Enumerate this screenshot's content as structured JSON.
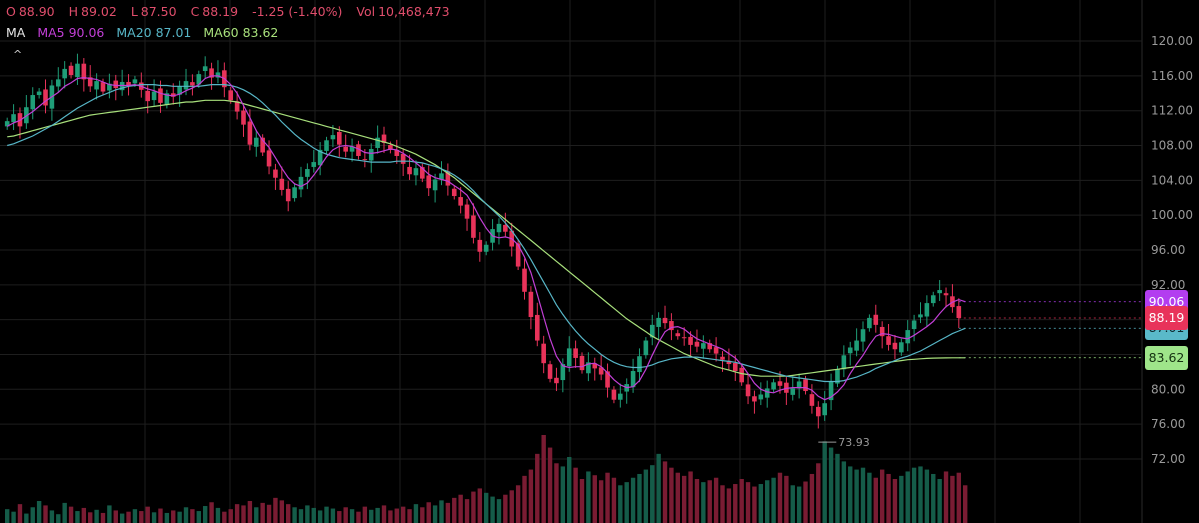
{
  "header": {
    "open_label": "O",
    "open": "88.90",
    "high_label": "H",
    "high": "89.02",
    "low_label": "L",
    "low": "87.50",
    "close_label": "C",
    "close": "88.19",
    "change": "-1.25 (-1.40%)",
    "vol_label": "Vol",
    "volume": "10,468,473",
    "text_color": "#e04e6c"
  },
  "ma_legend": {
    "title": "MA",
    "ma5": "MA5 90.06",
    "ma20": "MA20 87.01",
    "ma60": "MA60 83.62",
    "collapse_icon": "^"
  },
  "price_tags": {
    "ma5": {
      "text": "90.06",
      "value": 90.06,
      "color": "#b33df0"
    },
    "close": {
      "text": "88.19",
      "value": 88.19,
      "color": "#e8335a"
    },
    "ma20": {
      "text": "87.01",
      "value": 87.01,
      "color": "#5ab9c9"
    },
    "ma60": {
      "text": "83.62",
      "value": 83.62,
      "color": "#9fe58a"
    }
  },
  "low_marker": "73.93",
  "colors": {
    "up": "#1f9e78",
    "down": "#e8335a",
    "up_volume": "#155c49",
    "down_volume": "#7a1c33",
    "ma5": "#c23fd6",
    "ma20": "#57b6c7",
    "ma60": "#a8e07c",
    "grid": "#1e1e1e",
    "axis_text": "#9a9a9a"
  },
  "chart_data": {
    "type": "candlestick",
    "y_axis": {
      "ticks": [
        "120.00",
        "116.00",
        "112.00",
        "108.00",
        "104.00",
        "100.00",
        "96.00",
        "92.00",
        "88.00",
        "84.00",
        "80.00",
        "76.00",
        "72.00"
      ],
      "range": [
        70.5,
        121.5
      ],
      "side": "right"
    },
    "grid": true,
    "close_series": [
      110.8,
      111.6,
      110.2,
      112.4,
      113.8,
      114.2,
      112.6,
      114.9,
      115.6,
      116.8,
      116.1,
      117.4,
      115.6,
      114.8,
      115.4,
      114.2,
      115.1,
      114.6,
      115.3,
      114.9,
      115.6,
      114.4,
      113.1,
      114.2,
      112.9,
      114.0,
      113.6,
      114.8,
      115.4,
      114.9,
      116.2,
      117.1,
      115.8,
      116.4,
      114.7,
      113.2,
      111.9,
      110.4,
      108.1,
      108.9,
      107.2,
      105.6,
      104.3,
      102.9,
      101.6,
      103.2,
      104.4,
      105.3,
      106.1,
      107.5,
      108.6,
      109.2,
      108.1,
      107.3,
      107.9,
      106.8,
      106.4,
      107.6,
      108.9,
      108.3,
      107.5,
      106.8,
      105.9,
      104.7,
      105.4,
      104.2,
      103.1,
      104.1,
      104.8,
      103.4,
      102.2,
      101.1,
      99.6,
      97.4,
      95.8,
      96.6,
      98.4,
      99.0,
      98.1,
      96.4,
      94.1,
      91.2,
      88.3,
      85.6,
      83.0,
      81.2,
      80.7,
      82.9,
      84.7,
      83.6,
      82.2,
      83.1,
      82.4,
      81.7,
      80.2,
      78.8,
      79.5,
      80.6,
      82.1,
      83.8,
      85.6,
      87.4,
      88.2,
      87.6,
      86.8,
      86.1,
      85.9,
      85.1,
      84.9,
      85.3,
      84.6,
      84.1,
      83.4,
      82.9,
      82.1,
      80.8,
      79.2,
      78.6,
      79.4,
      80.1,
      80.8,
      80.4,
      79.6,
      80.1,
      80.9,
      79.8,
      78.1,
      76.9,
      78.4,
      80.9,
      82.3,
      83.9,
      84.8,
      85.6,
      86.9,
      88.2,
      87.4,
      86.1,
      85.1,
      84.6,
      85.4,
      86.8,
      87.9,
      88.6,
      89.9,
      90.8,
      91.4,
      90.8,
      89.44,
      88.19
    ],
    "ma5": [
      110.2,
      110.6,
      110.9,
      111.4,
      111.9,
      112.5,
      113.1,
      113.6,
      114.1,
      114.8,
      115.2,
      115.7,
      115.8,
      115.7,
      115.6,
      115.3,
      115.0,
      114.9,
      114.9,
      114.9,
      115.0,
      114.8,
      114.5,
      114.3,
      114.0,
      113.8,
      113.7,
      113.9,
      114.3,
      114.6,
      115.0,
      115.7,
      116.0,
      116.0,
      115.7,
      115.0,
      114.0,
      112.6,
      111.2,
      109.7,
      108.6,
      107.8,
      106.6,
      105.4,
      104.3,
      103.6,
      103.3,
      103.7,
      104.6,
      105.6,
      106.7,
      107.5,
      107.9,
      108.0,
      107.9,
      107.6,
      107.2,
      107.1,
      107.2,
      107.4,
      107.6,
      107.5,
      107.1,
      106.6,
      106.0,
      105.4,
      104.7,
      104.3,
      104.1,
      103.9,
      103.4,
      102.9,
      102.3,
      101.1,
      99.7,
      98.5,
      97.6,
      97.4,
      97.5,
      97.3,
      96.6,
      95.2,
      93.4,
      90.9,
      88.3,
      85.8,
      83.8,
      82.7,
      82.5,
      82.6,
      82.6,
      82.9,
      83.0,
      82.6,
      81.9,
      81.1,
      80.5,
      80.2,
      80.3,
      81.0,
      82.3,
      83.9,
      85.4,
      86.6,
      87.1,
      87.2,
      86.9,
      86.3,
      85.8,
      85.5,
      85.2,
      84.9,
      84.6,
      84.1,
      83.6,
      82.8,
      81.8,
      80.7,
      80.0,
      79.7,
      79.6,
      79.9,
      80.1,
      80.2,
      80.2,
      80.2,
      79.9,
      79.2,
      78.8,
      79.1,
      79.7,
      80.5,
      81.8,
      82.9,
      83.9,
      85.1,
      86.1,
      86.4,
      86.3,
      86.1,
      85.9,
      85.8,
      86.2,
      86.7,
      87.2,
      87.8,
      88.7,
      89.5,
      90.0,
      90.3,
      90.06
    ],
    "ma20": [
      108.0,
      108.2,
      108.5,
      108.8,
      109.1,
      109.5,
      109.9,
      110.3,
      110.8,
      111.3,
      111.8,
      112.3,
      112.7,
      113.1,
      113.5,
      113.8,
      114.1,
      114.4,
      114.6,
      114.8,
      114.9,
      115.0,
      115.0,
      115.0,
      114.9,
      114.9,
      114.8,
      114.8,
      114.8,
      114.8,
      114.8,
      114.9,
      115.0,
      115.0,
      115.0,
      114.9,
      114.7,
      114.4,
      114.0,
      113.5,
      112.9,
      112.2,
      111.5,
      110.7,
      110.0,
      109.3,
      108.7,
      108.2,
      107.7,
      107.3,
      107.0,
      106.8,
      106.6,
      106.5,
      106.4,
      106.3,
      106.2,
      106.1,
      106.1,
      106.1,
      106.1,
      106.2,
      106.2,
      106.2,
      106.1,
      106.0,
      105.8,
      105.6,
      105.3,
      105.0,
      104.6,
      104.1,
      103.5,
      102.8,
      102.0,
      101.3,
      100.6,
      99.9,
      99.1,
      98.2,
      97.2,
      96.1,
      94.9,
      93.6,
      92.3,
      91.0,
      89.7,
      88.6,
      87.6,
      86.7,
      85.9,
      85.2,
      84.6,
      84.0,
      83.5,
      83.1,
      82.8,
      82.6,
      82.5,
      82.5,
      82.6,
      82.8,
      83.1,
      83.3,
      83.5,
      83.6,
      83.7,
      83.7,
      83.7,
      83.6,
      83.5,
      83.4,
      83.3,
      83.2,
      83.1,
      82.9,
      82.7,
      82.5,
      82.3,
      82.1,
      81.9,
      81.7,
      81.5,
      81.4,
      81.3,
      81.2,
      81.1,
      81.0,
      80.9,
      80.9,
      80.9,
      81.0,
      81.2,
      81.4,
      81.7,
      82.0,
      82.4,
      82.7,
      83.0,
      83.3,
      83.6,
      83.8,
      84.1,
      84.4,
      84.8,
      85.2,
      85.6,
      86.0,
      86.4,
      86.7,
      87.01
    ],
    "ma60": [
      109.0,
      109.1,
      109.3,
      109.5,
      109.7,
      109.9,
      110.1,
      110.3,
      110.5,
      110.7,
      110.9,
      111.1,
      111.3,
      111.5,
      111.6,
      111.7,
      111.8,
      111.9,
      112.0,
      112.1,
      112.2,
      112.3,
      112.4,
      112.5,
      112.6,
      112.7,
      112.8,
      112.9,
      113.0,
      113.0,
      113.1,
      113.2,
      113.2,
      113.2,
      113.2,
      113.1,
      113.0,
      112.8,
      112.6,
      112.4,
      112.2,
      112.0,
      111.8,
      111.6,
      111.4,
      111.2,
      111.0,
      110.8,
      110.6,
      110.4,
      110.2,
      110.0,
      109.8,
      109.6,
      109.4,
      109.2,
      109.0,
      108.8,
      108.6,
      108.4,
      108.2,
      107.9,
      107.6,
      107.3,
      107.0,
      106.6,
      106.2,
      105.8,
      105.3,
      104.8,
      104.3,
      103.7,
      103.1,
      102.5,
      101.9,
      101.3,
      100.7,
      100.1,
      99.5,
      98.9,
      98.3,
      97.7,
      97.1,
      96.5,
      95.9,
      95.3,
      94.7,
      94.1,
      93.5,
      92.9,
      92.3,
      91.7,
      91.1,
      90.5,
      89.9,
      89.3,
      88.7,
      88.1,
      87.6,
      87.1,
      86.6,
      86.1,
      85.7,
      85.3,
      84.9,
      84.5,
      84.1,
      83.8,
      83.5,
      83.2,
      82.9,
      82.6,
      82.4,
      82.2,
      82.0,
      81.8,
      81.7,
      81.6,
      81.5,
      81.5,
      81.5,
      81.5,
      81.5,
      81.6,
      81.7,
      81.8,
      81.9,
      82.0,
      82.1,
      82.2,
      82.3,
      82.4,
      82.5,
      82.6,
      82.7,
      82.8,
      82.9,
      83.0,
      83.1,
      83.2,
      83.3,
      83.4,
      83.45,
      83.5,
      83.55,
      83.58,
      83.6,
      83.61,
      83.62,
      83.62,
      83.62
    ],
    "volume": [
      22,
      18,
      30,
      15,
      25,
      35,
      28,
      20,
      14,
      32,
      26,
      19,
      24,
      17,
      21,
      16,
      28,
      20,
      15,
      18,
      22,
      19,
      26,
      17,
      23,
      16,
      20,
      18,
      25,
      22,
      19,
      27,
      33,
      24,
      18,
      22,
      30,
      28,
      35,
      25,
      32,
      29,
      40,
      36,
      30,
      25,
      22,
      28,
      24,
      20,
      26,
      23,
      19,
      25,
      22,
      18,
      26,
      21,
      24,
      28,
      20,
      23,
      26,
      22,
      30,
      25,
      33,
      28,
      36,
      32,
      40,
      45,
      38,
      50,
      55,
      48,
      42,
      38,
      45,
      52,
      60,
      75,
      85,
      110,
      140,
      120,
      95,
      90,
      105,
      88,
      70,
      82,
      76,
      68,
      80,
      72,
      60,
      65,
      72,
      78,
      85,
      92,
      110,
      98,
      88,
      80,
      75,
      82,
      70,
      65,
      68,
      72,
      60,
      55,
      62,
      70,
      65,
      58,
      62,
      68,
      72,
      80,
      75,
      60,
      58,
      66,
      78,
      95,
      130,
      120,
      110,
      98,
      90,
      85,
      88,
      80,
      72,
      85,
      78,
      70,
      75,
      82,
      88,
      90,
      85,
      78,
      70,
      82,
      75,
      80,
      60
    ],
    "low_marker_value": 73.93
  }
}
